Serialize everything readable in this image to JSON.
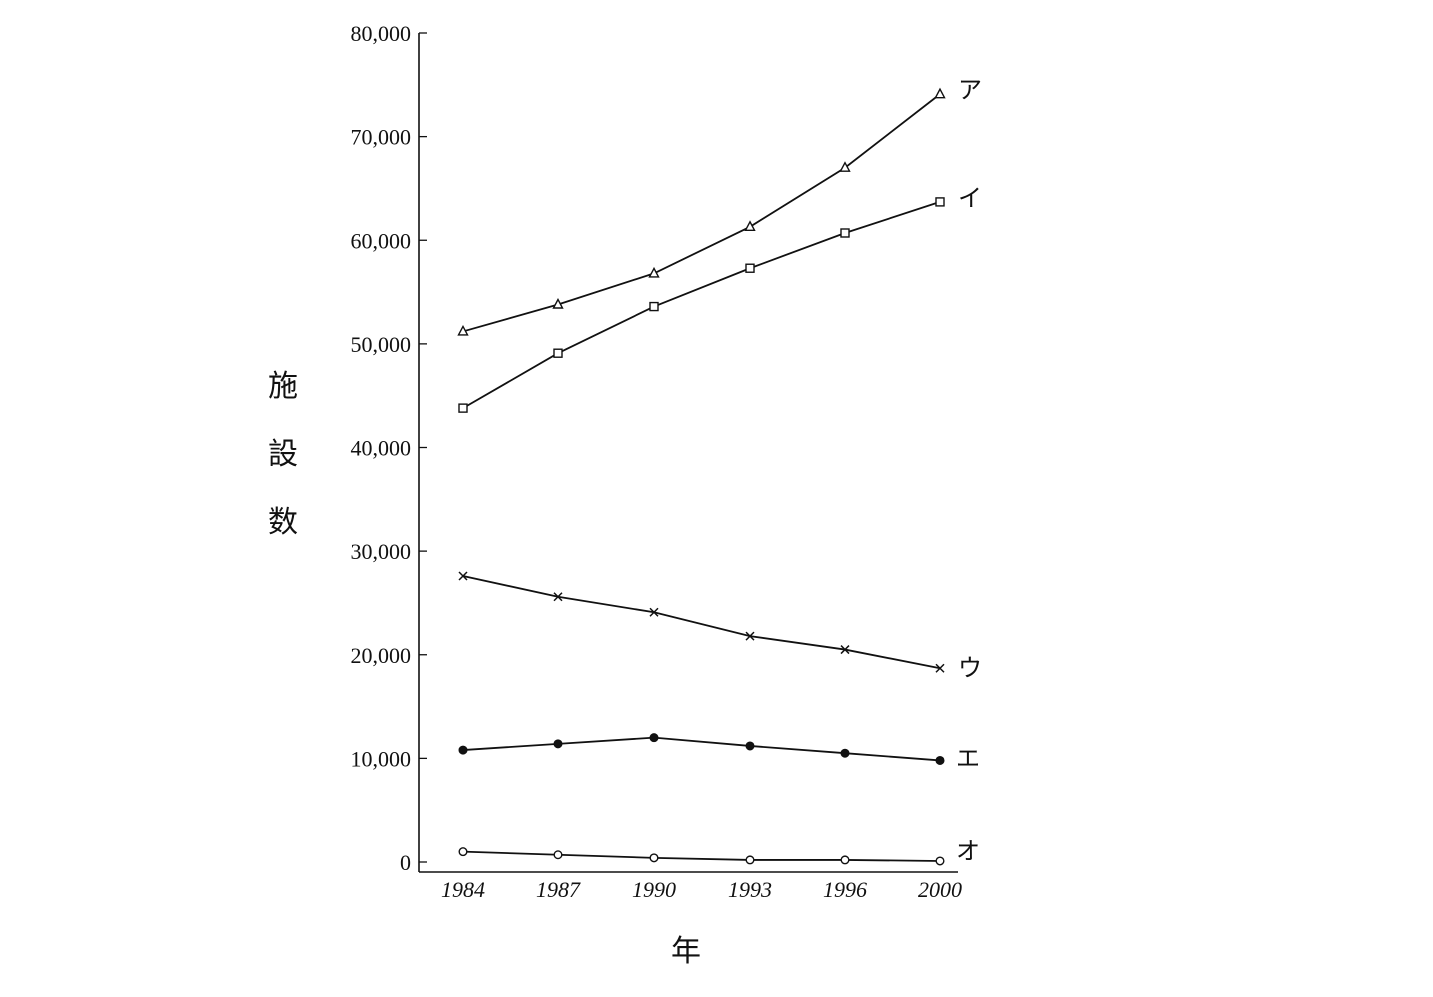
{
  "chart_data": {
    "type": "line",
    "title": "",
    "xlabel": "年",
    "ylabel": "施設数",
    "x": [
      "1984",
      "1987",
      "1990",
      "1993",
      "1996",
      "2000"
    ],
    "ylim": [
      0,
      80000
    ],
    "yticks": [
      "0",
      "10,000",
      "20,000",
      "30,000",
      "40,000",
      "50,000",
      "60,000",
      "70,000",
      "80,000"
    ],
    "ytick_values": [
      0,
      10000,
      20000,
      30000,
      40000,
      50000,
      60000,
      70000,
      80000
    ],
    "grid": false,
    "series": [
      {
        "name": "ア",
        "marker": "triangle",
        "values": [
          51200,
          53800,
          56800,
          61300,
          67000,
          74100
        ]
      },
      {
        "name": "イ",
        "marker": "square",
        "values": [
          43800,
          49100,
          53600,
          57300,
          60700,
          63700
        ]
      },
      {
        "name": "ウ",
        "marker": "x",
        "values": [
          27600,
          25600,
          24100,
          21800,
          20500,
          18700
        ]
      },
      {
        "name": "エ",
        "marker": "filled-circle",
        "values": [
          10800,
          11400,
          12000,
          11200,
          10500,
          9800
        ]
      },
      {
        "name": "オ",
        "marker": "open-circle",
        "values": [
          1000,
          700,
          400,
          200,
          200,
          100
        ]
      }
    ]
  }
}
